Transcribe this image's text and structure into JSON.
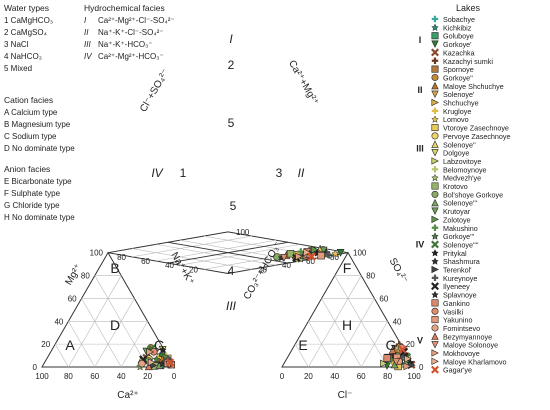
{
  "water_types": {
    "title": "Water types",
    "items": [
      "1  CaMgHCO₃",
      "2  CaMgSO₄",
      "3  NaCl",
      "4  NaHCO₃",
      "5  Mixed"
    ]
  },
  "hydrochemical_facies": {
    "title": "Hydrochemical facies",
    "items": [
      {
        "num": "I",
        "text": "Ca²⁺-Mg²⁺-Cl⁻-SO₄²⁻"
      },
      {
        "num": "II",
        "text": "Na⁺-K⁺-Cl⁻-SO₄²⁻"
      },
      {
        "num": "III",
        "text": "Na⁺-K⁺-HCO₃⁻"
      },
      {
        "num": "IV",
        "text": "Ca²⁺-Mg²⁺-HCO₃⁻"
      }
    ]
  },
  "cation_facies": {
    "title": "Cation facies",
    "items": [
      "A  Calcium type",
      "B  Magnesium type",
      "C  Sodium type",
      "D  No dominate type"
    ]
  },
  "anion_facies": {
    "title": "Anion facies",
    "items": [
      "E  Bicarbonate type",
      "F  Sulphate type",
      "G  Chloride type",
      "H  No dominate type"
    ]
  },
  "axes": {
    "ca": "Ca²⁺",
    "mg": "Mg²⁺",
    "nak": "Na⁺+K⁺",
    "cl": "Cl⁻",
    "so4": "SO₄²⁻",
    "co3hco3": "CO₃²⁻+HCO₃⁻",
    "clso4": "Cl⁻+SO₄²⁻",
    "camg": "Ca²⁺+Mg²⁺"
  },
  "ticks": [
    "0",
    "20",
    "40",
    "60",
    "80",
    "100"
  ],
  "zone_labels": {
    "cation": [
      "A",
      "B",
      "C",
      "D"
    ],
    "anion": [
      "E",
      "F",
      "G",
      "H"
    ],
    "diamond_types": [
      "1",
      "2",
      "3",
      "4",
      "5"
    ],
    "diamond_facies": [
      "I",
      "II",
      "III",
      "IV"
    ]
  },
  "lakes": {
    "title": "Lakes",
    "groups": [
      {
        "label": "I",
        "items": [
          {
            "name": "Sobachye",
            "shape": "plus",
            "color": "#3aa89a"
          },
          {
            "name": "Kichkibiz",
            "shape": "star",
            "color": "#2f8f7f"
          },
          {
            "name": "Goluboye",
            "shape": "square",
            "color": "#3c9e6a"
          },
          {
            "name": "Gorkoye'",
            "shape": "tri-down",
            "color": "#2e7d32"
          },
          {
            "name": "Kazachka",
            "shape": "x",
            "color": "#8b4a2b"
          },
          {
            "name": "Kazachyi sumki",
            "shape": "plus",
            "color": "#6b3a1e"
          }
        ]
      },
      {
        "label": "II",
        "items": [
          {
            "name": "Spornoye",
            "shape": "square",
            "color": "#b07a3c"
          },
          {
            "name": "Gorkoye''",
            "shape": "circle",
            "color": "#c58a3a"
          },
          {
            "name": "Maloye Shchuchye",
            "shape": "tri-up",
            "color": "#b8742c"
          },
          {
            "name": "Solenoye'",
            "shape": "tri-down",
            "color": "#d4a14a"
          },
          {
            "name": "Shchuchye",
            "shape": "tri-right",
            "color": "#d9b04a"
          },
          {
            "name": "Krugloye",
            "shape": "plus",
            "color": "#e0b84e"
          }
        ]
      },
      {
        "label": "III",
        "items": [
          {
            "name": "Lomovo",
            "shape": "star",
            "color": "#e6c24f"
          },
          {
            "name": "Vtoroye Zasechnoye",
            "shape": "square",
            "color": "#e8c95a"
          },
          {
            "name": "Pervoye Zasechnoye",
            "shape": "circle",
            "color": "#efd467"
          },
          {
            "name": "Solenoye''",
            "shape": "tri-up",
            "color": "#e8d46a"
          },
          {
            "name": "Dolgoye",
            "shape": "tri-down",
            "color": "#d8d36a"
          },
          {
            "name": "Labzovitoye",
            "shape": "tri-right",
            "color": "#c9cf6e"
          },
          {
            "name": "Belomoynoye",
            "shape": "plus",
            "color": "#b7c46a"
          },
          {
            "name": "Medvezh'ye",
            "shape": "star",
            "color": "#a8be6a"
          }
        ]
      },
      {
        "label": "IV",
        "items": [
          {
            "name": "Krotovo",
            "shape": "square",
            "color": "#96b46a"
          },
          {
            "name": "Bol'shoye Gorkoye",
            "shape": "circle",
            "color": "#86aa62"
          },
          {
            "name": "Solenoye'''",
            "shape": "tri-up",
            "color": "#7aa35c"
          },
          {
            "name": "Krutoyar",
            "shape": "tri-down",
            "color": "#6d9c55"
          },
          {
            "name": "Zolotoye",
            "shape": "tri-right",
            "color": "#60944f"
          },
          {
            "name": "Makushino",
            "shape": "plus",
            "color": "#578c48"
          },
          {
            "name": "Gorkoye'''",
            "shape": "star",
            "color": "#4b7f3e"
          },
          {
            "name": "Solenoye''''",
            "shape": "x",
            "color": "#3f7437"
          },
          {
            "name": "Pritykal",
            "shape": "star",
            "color": "#222222"
          },
          {
            "name": "Shashmura",
            "shape": "star",
            "color": "#333333"
          },
          {
            "name": "Terenkol'",
            "shape": "tri-right",
            "color": "#444444"
          },
          {
            "name": "Kureynoye",
            "shape": "plus",
            "color": "#555555"
          },
          {
            "name": "Ilyeneey",
            "shape": "x",
            "color": "#222222"
          },
          {
            "name": "Splavnoye",
            "shape": "star",
            "color": "#333333"
          },
          {
            "name": "Gankino",
            "shape": "square",
            "color": "#d98a6a"
          }
        ]
      },
      {
        "label": "V",
        "items": [
          {
            "name": "Vasilki",
            "shape": "circle",
            "color": "#e08b6a"
          },
          {
            "name": "Yakunino",
            "shape": "square",
            "color": "#e39a7a"
          },
          {
            "name": "Fomintsevo",
            "shape": "circle",
            "color": "#e5a383"
          },
          {
            "name": "Bezymyannoye",
            "shape": "tri-up",
            "color": "#d97a55"
          },
          {
            "name": "Maloye Solonoye",
            "shape": "tri-down",
            "color": "#e09070"
          },
          {
            "name": "Mokhovoye",
            "shape": "tri-right",
            "color": "#e5a080"
          },
          {
            "name": "Maloye Kharlamovo",
            "shape": "tri-right",
            "color": "#e8b090"
          },
          {
            "name": "Gagar'ye",
            "shape": "x",
            "color": "#d0502c"
          }
        ]
      }
    ]
  }
}
